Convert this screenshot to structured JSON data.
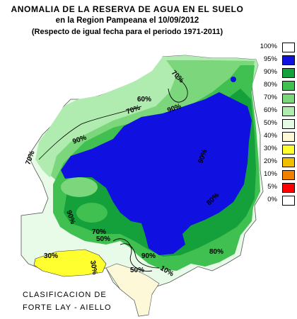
{
  "title": {
    "line1": "ANOMALIA DE LA RESERVA DE AGUA EN EL SUELO",
    "line2": "en la Region Pampeana el  10/09/2012",
    "line3": "(Respecto de igual fecha para el periodo 1971-2011)"
  },
  "legend": [
    {
      "label": "100%",
      "color": "#ffffff"
    },
    {
      "label": "95%",
      "color": "#1010e0"
    },
    {
      "label": "90%",
      "color": "#14a03a"
    },
    {
      "label": "80%",
      "color": "#40c050"
    },
    {
      "label": "70%",
      "color": "#7cd67c"
    },
    {
      "label": "60%",
      "color": "#b0ecb0"
    },
    {
      "label": "50%",
      "color": "#e4fae4"
    },
    {
      "label": "40%",
      "color": "#fcf8d8"
    },
    {
      "label": "30%",
      "color": "#ffff30"
    },
    {
      "label": "20%",
      "color": "#f0c000"
    },
    {
      "label": "10%",
      "color": "#f08000"
    },
    {
      "label": "5%",
      "color": "#ff0000"
    },
    {
      "label": "0%",
      "color": "#ffffff"
    }
  ],
  "contour_labels": [
    "70%",
    "60%",
    "70%",
    "90%",
    "90%",
    "70%",
    "90%",
    "90%",
    "70%",
    "50%",
    "30%",
    "30%",
    "90%",
    "50%",
    "10%",
    "80%",
    "80%"
  ],
  "credit": {
    "line1": "CLASIFICACION DE",
    "line2": "FORTE LAY - AIELLO"
  }
}
